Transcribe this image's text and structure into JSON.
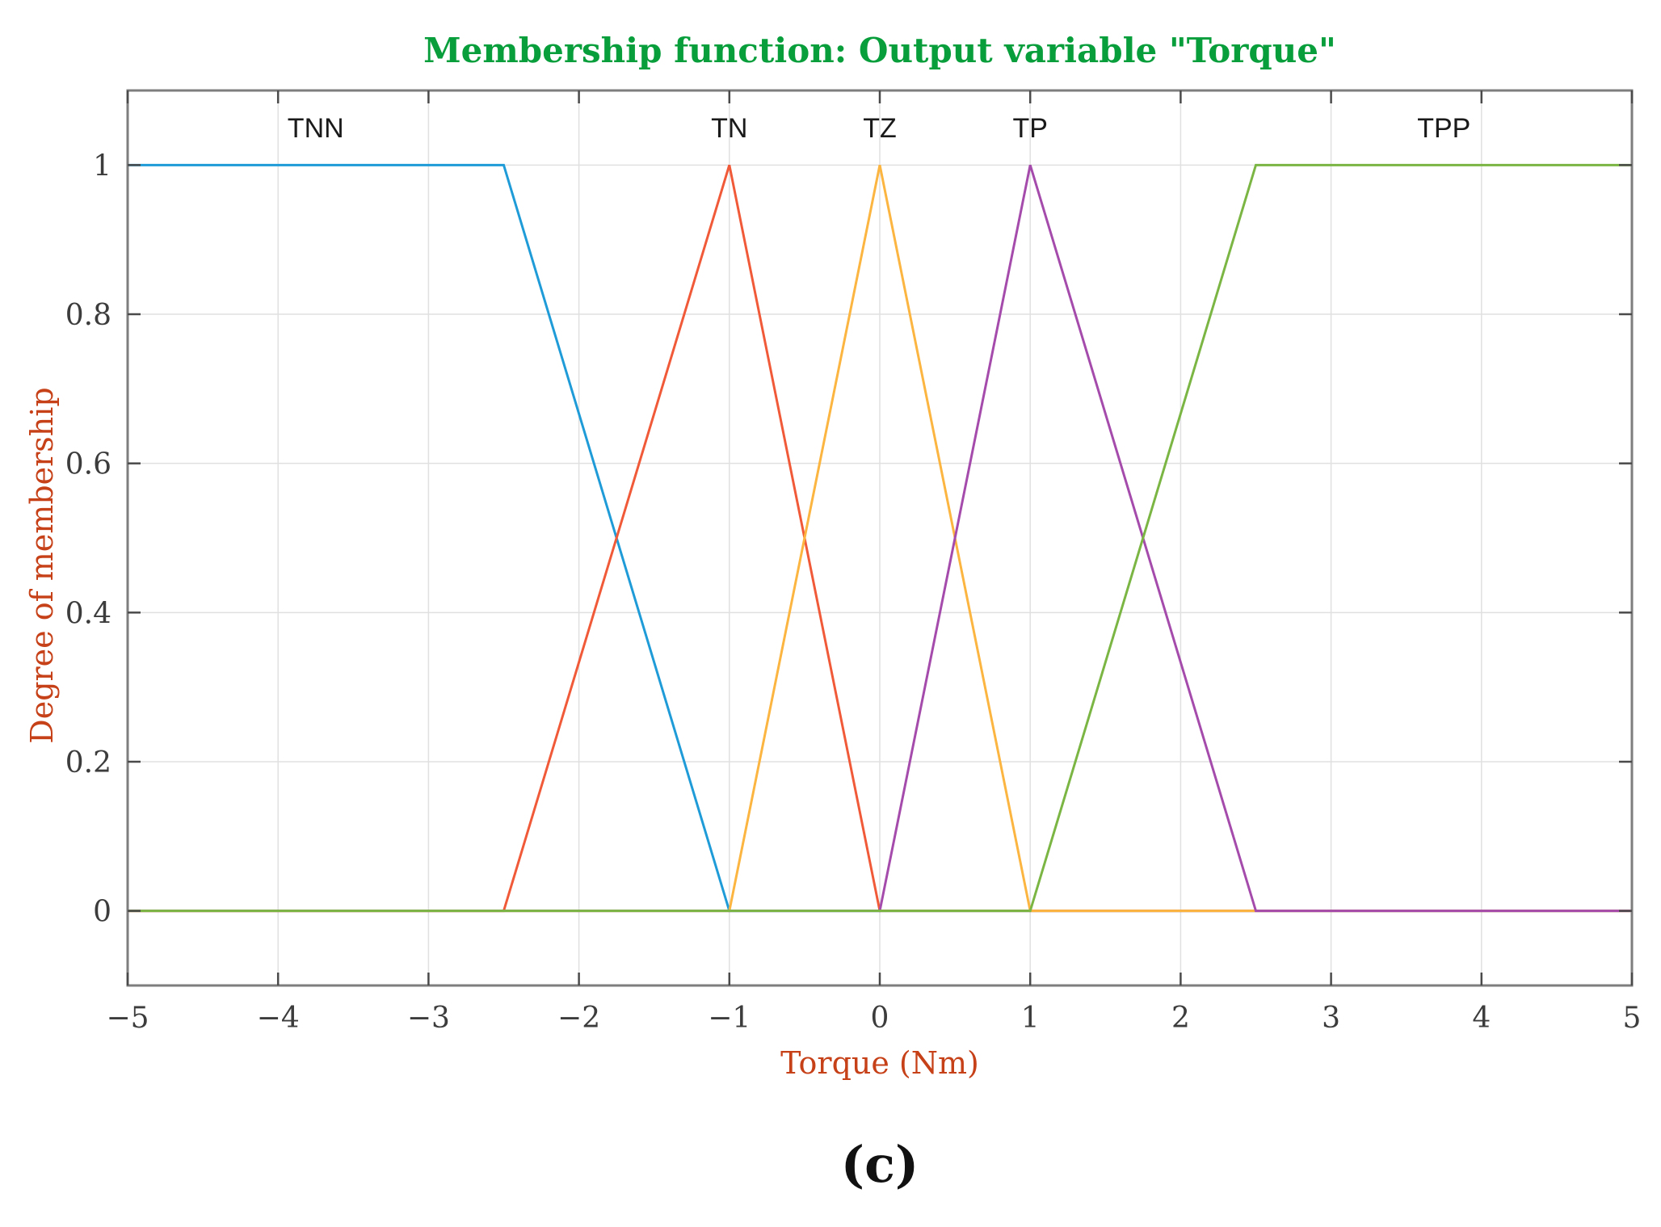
{
  "caption": "(c)",
  "chart_data": {
    "type": "line",
    "title": "Membership function: Output variable \"Torque\"",
    "xlabel": "Torque (Nm)",
    "ylabel": "Degree of membership",
    "xlim": [
      -5,
      5
    ],
    "ylim": [
      -0.1,
      1.1
    ],
    "xticks": [
      -5,
      -4,
      -3,
      -2,
      -1,
      0,
      1,
      2,
      3,
      4,
      5
    ],
    "yticks": [
      0,
      0.2,
      0.4,
      0.6,
      0.8,
      1
    ],
    "grid": true,
    "legend": "none",
    "series": [
      {
        "name": "TNN",
        "shape": "trapezoid",
        "color": "#1f9bd8",
        "points": [
          [
            -5,
            1
          ],
          [
            -2.5,
            1
          ],
          [
            -1,
            0
          ],
          [
            5,
            0
          ]
        ]
      },
      {
        "name": "TN",
        "shape": "triangle",
        "color": "#f15a38",
        "points": [
          [
            -5,
            0
          ],
          [
            -2.5,
            0
          ],
          [
            -1,
            1
          ],
          [
            0,
            0
          ],
          [
            5,
            0
          ]
        ]
      },
      {
        "name": "TZ",
        "shape": "triangle",
        "color": "#fbb540",
        "points": [
          [
            -5,
            0
          ],
          [
            -1,
            0
          ],
          [
            0,
            1
          ],
          [
            1,
            0
          ],
          [
            5,
            0
          ]
        ]
      },
      {
        "name": "TP",
        "shape": "triangle",
        "color": "#a44bac",
        "points": [
          [
            -5,
            0
          ],
          [
            0,
            0
          ],
          [
            1,
            1
          ],
          [
            2.5,
            0
          ],
          [
            5,
            0
          ]
        ]
      },
      {
        "name": "TPP",
        "shape": "trapezoid",
        "color": "#7bb644",
        "points": [
          [
            -5,
            0
          ],
          [
            1,
            0
          ],
          [
            2.5,
            1
          ],
          [
            5,
            1
          ]
        ]
      }
    ],
    "annotations": [
      {
        "text": "TNN",
        "x": -3.75,
        "y": 1.05
      },
      {
        "text": "TN",
        "x": -1,
        "y": 1.05
      },
      {
        "text": "TZ",
        "x": 0,
        "y": 1.05
      },
      {
        "text": "TP",
        "x": 1,
        "y": 1.05
      },
      {
        "text": "TPP",
        "x": 3.75,
        "y": 1.05
      }
    ],
    "colors": {
      "title": "#089e3c",
      "axis_label": "#c64018",
      "tick_label": "#3c3c3c",
      "mf_label": "#1a1a1a",
      "grid": "#e0e0e0",
      "axis_border": "#7e7e7e",
      "tick_mark": "#4a4a4a",
      "background": "#ffffff"
    }
  }
}
